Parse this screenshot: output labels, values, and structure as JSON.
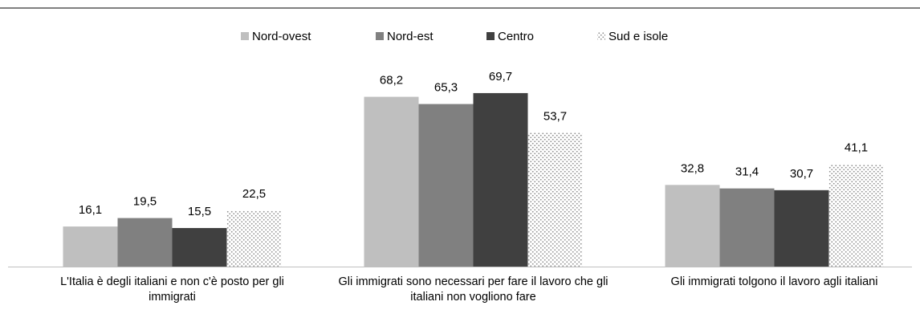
{
  "chart_data": {
    "type": "bar",
    "categories": [
      "L'Italia è degli italiani e non c'è posto per gli immigrati",
      "Gli immigrati sono necessari per fare il lavoro che gli italiani non vogliono fare",
      "Gli immigrati tolgono il lavoro agli italiani"
    ],
    "series": [
      {
        "name": "Nord-ovest",
        "color": "#bfbfbf",
        "values": [
          16.1,
          68.2,
          32.8
        ],
        "value_labels": [
          "16,1",
          "68,2",
          "32,8"
        ]
      },
      {
        "name": "Nord-est",
        "color": "#808080",
        "values": [
          19.5,
          65.3,
          31.4
        ],
        "value_labels": [
          "19,5",
          "65,3",
          "31,4"
        ]
      },
      {
        "name": "Centro",
        "color": "#404040",
        "values": [
          15.5,
          69.7,
          30.7
        ],
        "value_labels": [
          "15,5",
          "69,7",
          "30,7"
        ]
      },
      {
        "name": "Sud e isole",
        "color": "#a6a6a6",
        "pattern": "dots",
        "values": [
          22.5,
          53.7,
          41.1
        ],
        "value_labels": [
          "22,5",
          "53,7",
          "41,1"
        ]
      }
    ],
    "ylim": [
      0,
      80
    ],
    "legend": "top"
  }
}
